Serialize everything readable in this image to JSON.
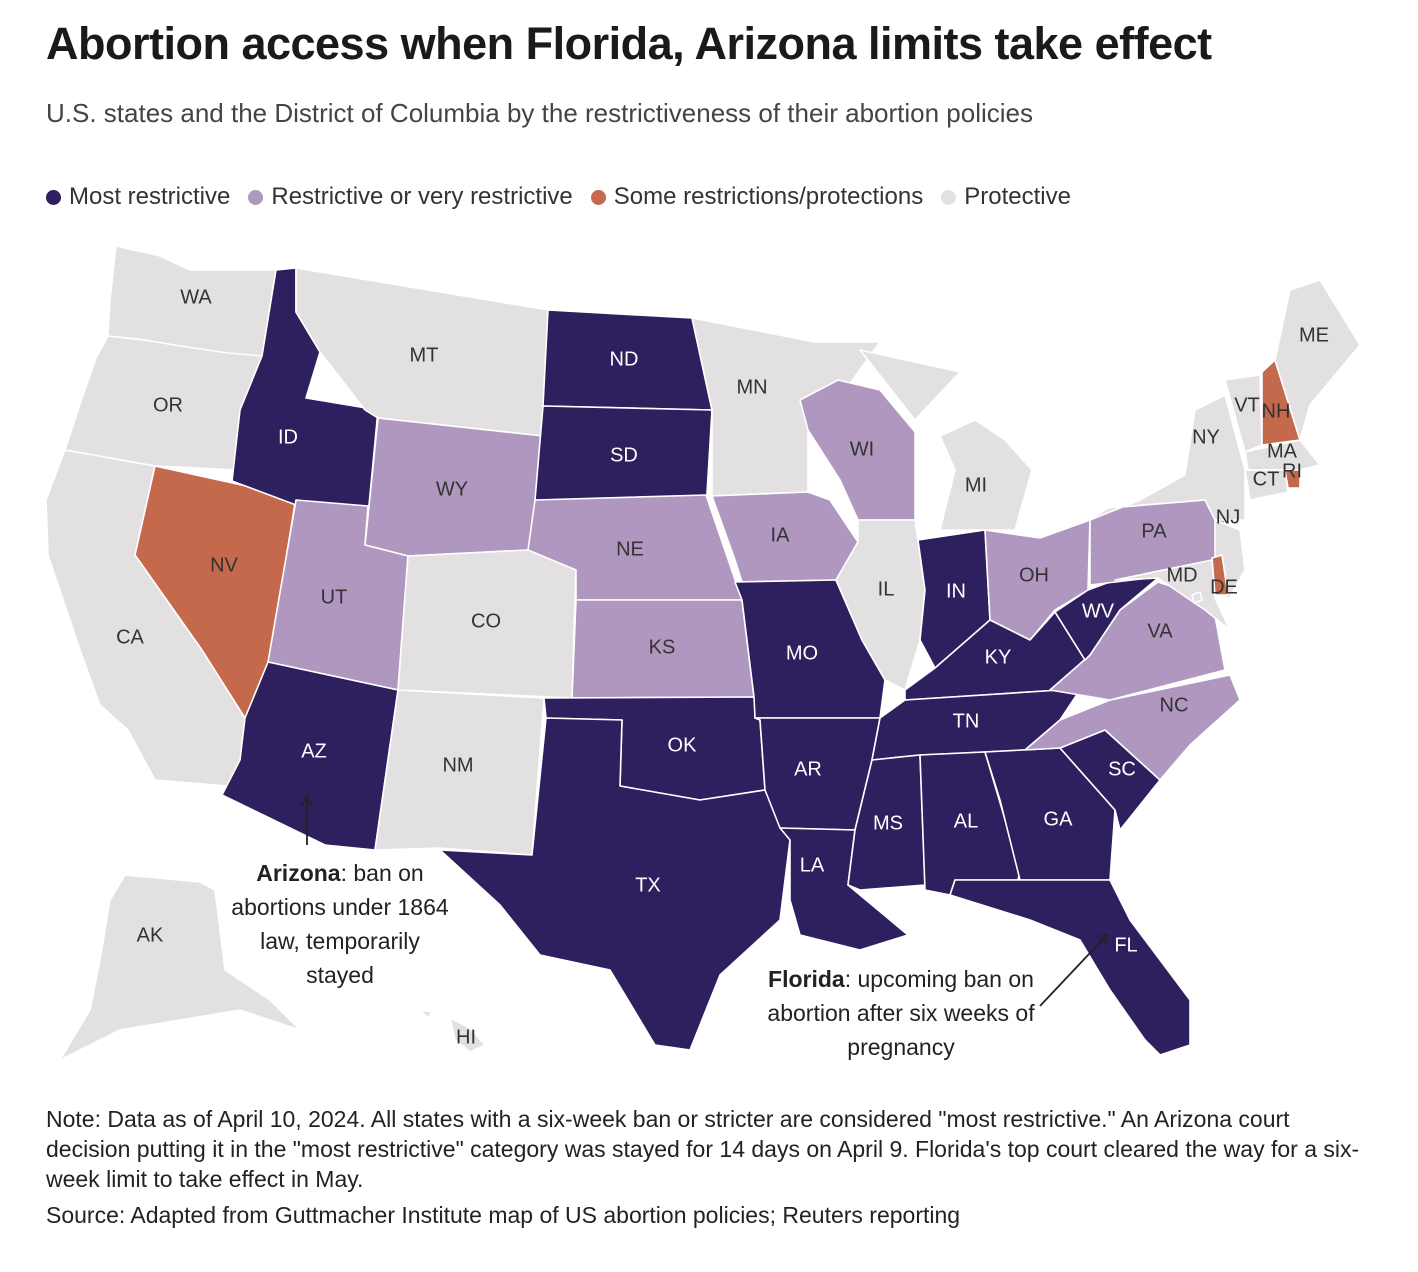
{
  "header": {
    "title": "Abortion access when Florida, Arizona limits take effect",
    "subtitle": "U.S. states and the District of Columbia by the restrictiveness of their abortion policies"
  },
  "legend": [
    {
      "key": "most",
      "label": "Most restrictive",
      "color": "#2e1f5e"
    },
    {
      "key": "restrictive",
      "label": "Restrictive or very restrictive",
      "color": "#b097c0"
    },
    {
      "key": "some",
      "label": "Some restrictions/protections",
      "color": "#c4694c"
    },
    {
      "key": "protective",
      "label": "Protective",
      "color": "#e2e0e0"
    }
  ],
  "states": [
    {
      "abbr": "WA",
      "category": "protective"
    },
    {
      "abbr": "OR",
      "category": "protective"
    },
    {
      "abbr": "CA",
      "category": "protective"
    },
    {
      "abbr": "NV",
      "category": "some"
    },
    {
      "abbr": "ID",
      "category": "most"
    },
    {
      "abbr": "MT",
      "category": "protective"
    },
    {
      "abbr": "WY",
      "category": "restrictive"
    },
    {
      "abbr": "UT",
      "category": "restrictive"
    },
    {
      "abbr": "AZ",
      "category": "most"
    },
    {
      "abbr": "CO",
      "category": "protective"
    },
    {
      "abbr": "NM",
      "category": "protective"
    },
    {
      "abbr": "ND",
      "category": "most"
    },
    {
      "abbr": "SD",
      "category": "most"
    },
    {
      "abbr": "NE",
      "category": "restrictive"
    },
    {
      "abbr": "KS",
      "category": "restrictive"
    },
    {
      "abbr": "OK",
      "category": "most"
    },
    {
      "abbr": "TX",
      "category": "most"
    },
    {
      "abbr": "MN",
      "category": "protective"
    },
    {
      "abbr": "IA",
      "category": "restrictive"
    },
    {
      "abbr": "MO",
      "category": "most"
    },
    {
      "abbr": "AR",
      "category": "most"
    },
    {
      "abbr": "LA",
      "category": "most"
    },
    {
      "abbr": "WI",
      "category": "restrictive"
    },
    {
      "abbr": "IL",
      "category": "protective"
    },
    {
      "abbr": "MI",
      "category": "protective"
    },
    {
      "abbr": "IN",
      "category": "most"
    },
    {
      "abbr": "OH",
      "category": "restrictive"
    },
    {
      "abbr": "KY",
      "category": "most"
    },
    {
      "abbr": "TN",
      "category": "most"
    },
    {
      "abbr": "MS",
      "category": "most"
    },
    {
      "abbr": "AL",
      "category": "most"
    },
    {
      "abbr": "GA",
      "category": "most"
    },
    {
      "abbr": "FL",
      "category": "most"
    },
    {
      "abbr": "SC",
      "category": "most"
    },
    {
      "abbr": "NC",
      "category": "restrictive"
    },
    {
      "abbr": "VA",
      "category": "restrictive"
    },
    {
      "abbr": "WV",
      "category": "most"
    },
    {
      "abbr": "PA",
      "category": "restrictive"
    },
    {
      "abbr": "NY",
      "category": "protective"
    },
    {
      "abbr": "VT",
      "category": "protective"
    },
    {
      "abbr": "NH",
      "category": "some"
    },
    {
      "abbr": "ME",
      "category": "protective"
    },
    {
      "abbr": "MA",
      "category": "protective"
    },
    {
      "abbr": "RI",
      "category": "some"
    },
    {
      "abbr": "CT",
      "category": "protective"
    },
    {
      "abbr": "NJ",
      "category": "protective"
    },
    {
      "abbr": "DE",
      "category": "some"
    },
    {
      "abbr": "MD",
      "category": "protective"
    },
    {
      "abbr": "DC",
      "category": "protective"
    },
    {
      "abbr": "AK",
      "category": "protective"
    },
    {
      "abbr": "HI",
      "category": "protective"
    }
  ],
  "annotations": {
    "arizona": {
      "bold": "Arizona",
      "text": ": ban on abortions under 1864 law, temporarily stayed"
    },
    "florida": {
      "bold": "Florida",
      "text": ": upcoming ban on abortion after six weeks of pregnancy"
    }
  },
  "footer": {
    "note": "Note: Data as of April 10, 2024. All states with a six-week ban or stricter are considered \"most restrictive.\" An Arizona court decision putting it in the \"most restrictive\" category was stayed for 14 days on April 9. Florida's top court cleared the way for a six-week limit to take effect in May.",
    "source": "Source: Adapted from Guttmacher Institute map of US abortion policies; Reuters reporting"
  }
}
